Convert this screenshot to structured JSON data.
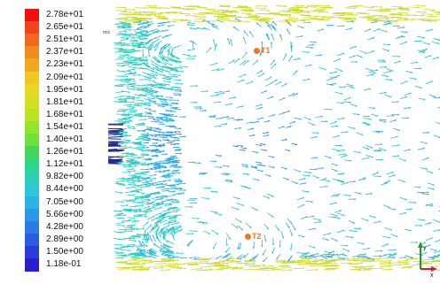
{
  "legend": {
    "unit": "m/s",
    "labels": [
      "2.78e+01",
      "2.65e+01",
      "2.51e+01",
      "2.37e+01",
      "2.23e+01",
      "2.09e+01",
      "1.95e+01",
      "1.81e+01",
      "1.68e+01",
      "1.54e+01",
      "1.40e+01",
      "1.26e+01",
      "1.12e+01",
      "9.82e+00",
      "8.44e+00",
      "7.05e+00",
      "5.66e+00",
      "4.28e+00",
      "2.89e+00",
      "1.50e+00",
      "1.18e-01"
    ],
    "colors": [
      "#f01010",
      "#f2441a",
      "#f06a1c",
      "#f08c1e",
      "#f0a820",
      "#f0c822",
      "#e8d824",
      "#d2e020",
      "#b8e424",
      "#94e42a",
      "#6ee040",
      "#40d85a",
      "#2ad88c",
      "#2cd0b4",
      "#2cc8d4",
      "#2ab4e4",
      "#2a98e8",
      "#2a7ae4",
      "#2a5ce0",
      "#2a3cd8",
      "#2a1ed0"
    ]
  },
  "probes": [
    {
      "label": "T1"
    },
    {
      "label": "T2"
    }
  ],
  "axes": {
    "x": "x",
    "y": "y"
  }
}
